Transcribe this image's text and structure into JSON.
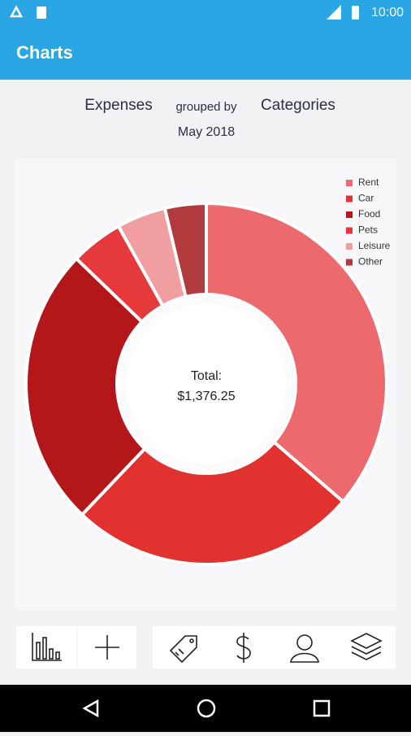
{
  "status_bar": {
    "time": "10:00"
  },
  "app_bar": {
    "title": "Charts"
  },
  "header": {
    "metric": "Expenses",
    "grouping_label": "grouped by",
    "grouping": "Categories",
    "period": "May 2018"
  },
  "chart_data": {
    "type": "donut",
    "categories": [
      "Rent",
      "Car",
      "Food",
      "Pets",
      "Leisure",
      "Other"
    ],
    "values": [
      36.3,
      25.8,
      25.1,
      4.7,
      4.4,
      3.7
    ],
    "colors": [
      "#ec6a6d",
      "#e23230",
      "#b3171a",
      "#e5393b",
      "#f19ea1",
      "#b03a3c"
    ],
    "center_label": "Total:",
    "center_value": "$1,376.25",
    "legend": "top-right"
  }
}
